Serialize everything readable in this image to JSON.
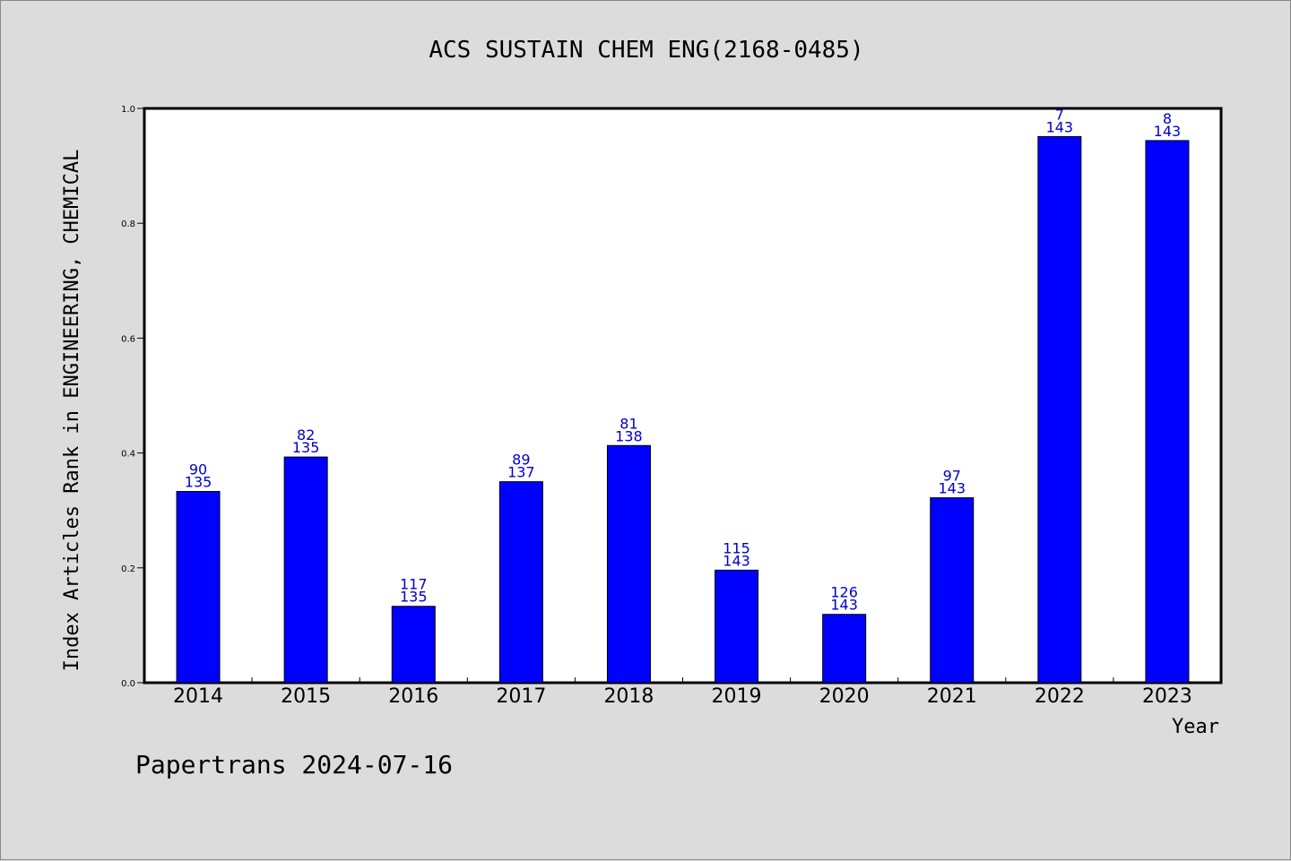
{
  "chart_data": {
    "type": "bar",
    "title": "ACS SUSTAIN CHEM ENG(2168-0485)",
    "ylabel": "Index Articles Rank in ENGINEERING, CHEMICAL",
    "xlabel": "Year",
    "ylim": [
      0,
      1.0
    ],
    "yticks": [
      "0.0",
      "0.2",
      "0.4",
      "0.6",
      "0.8",
      "1.0"
    ],
    "categories": [
      "2014",
      "2015",
      "2016",
      "2017",
      "2018",
      "2019",
      "2020",
      "2021",
      "2022",
      "2023"
    ],
    "values": [
      0.333,
      0.393,
      0.133,
      0.35,
      0.413,
      0.196,
      0.119,
      0.322,
      0.951,
      0.944
    ],
    "rank": [
      "90",
      "82",
      "117",
      "89",
      "81",
      "115",
      "126",
      "97",
      "7",
      "8"
    ],
    "total": [
      "135",
      "135",
      "135",
      "137",
      "138",
      "143",
      "143",
      "143",
      "143",
      "143"
    ],
    "bar_color": "#0000ff",
    "label_color": "#0000cc",
    "plot_background": "#ffffff",
    "grid": false
  },
  "footer": "Papertrans 2024-07-16"
}
